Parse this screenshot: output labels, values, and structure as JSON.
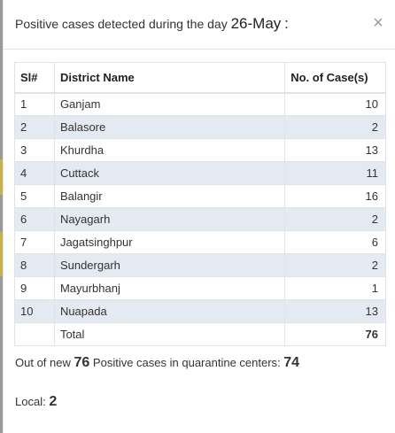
{
  "header": {
    "title_prefix": "Positive cases detected during the day",
    "date": "26-May",
    "title_suffix": ":",
    "close_symbol": "×"
  },
  "table": {
    "columns": [
      "Sl#",
      "District Name",
      "No. of Case(s)"
    ],
    "rows": [
      {
        "sl": "1",
        "district": "Ganjam",
        "cases": "10"
      },
      {
        "sl": "2",
        "district": "Balasore",
        "cases": "2"
      },
      {
        "sl": "3",
        "district": "Khurdha",
        "cases": "13"
      },
      {
        "sl": "4",
        "district": "Cuttack",
        "cases": "11"
      },
      {
        "sl": "5",
        "district": "Balangir",
        "cases": "16"
      },
      {
        "sl": "6",
        "district": "Nayagarh",
        "cases": "2"
      },
      {
        "sl": "7",
        "district": "Jagatsinghpur",
        "cases": "6"
      },
      {
        "sl": "8",
        "district": "Sundergarh",
        "cases": "2"
      },
      {
        "sl": "9",
        "district": "Mayurbhanj",
        "cases": "1"
      },
      {
        "sl": "10",
        "district": "Nuapada",
        "cases": "13"
      }
    ],
    "total_label": "Total",
    "total_value": "76"
  },
  "summary": {
    "prefix": "Out of new",
    "new_count": "76",
    "middle": "Positive cases in quarantine centers:",
    "quarantine_count": "74"
  },
  "local": {
    "label": "Local:",
    "count": "2"
  },
  "colors": {
    "alt_row": "#e4eaf1",
    "border": "#dfe3e8",
    "close_icon": "#9a9a9a"
  }
}
